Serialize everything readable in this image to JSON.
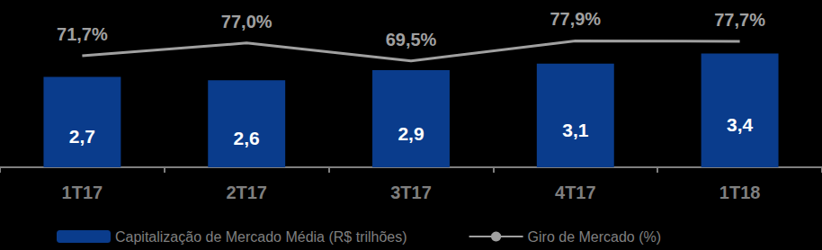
{
  "chart_data": {
    "type": "bar",
    "categories": [
      "1T17",
      "2T17",
      "3T17",
      "4T17",
      "1T18"
    ],
    "series": [
      {
        "name": "Capitalização de Mercado Média (R$ trilhões)",
        "type": "bar",
        "color": "#0a3c8c",
        "values": [
          2.7,
          2.6,
          2.9,
          3.1,
          3.4
        ],
        "value_labels": [
          "2,7",
          "2,6",
          "2,9",
          "3,1",
          "3,4"
        ]
      },
      {
        "name": "Giro de Mercado (%)",
        "type": "line",
        "axis": "y2",
        "color": "#a0a0a0",
        "values": [
          71.7,
          77.0,
          69.5,
          77.9,
          77.7
        ],
        "value_labels": [
          "71,7%",
          "77,0%",
          "69,5%",
          "77,9%",
          "77,7%"
        ]
      }
    ],
    "ylim": [
      0,
      5
    ],
    "y2lim": [
      25,
      95
    ],
    "grid": false,
    "legend": "bottom",
    "data_labels": true,
    "tick_labels": "x"
  }
}
